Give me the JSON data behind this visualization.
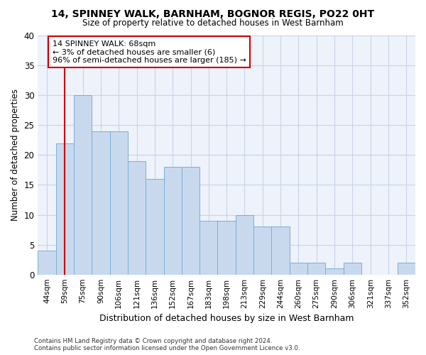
{
  "title": "14, SPINNEY WALK, BARNHAM, BOGNOR REGIS, PO22 0HT",
  "subtitle": "Size of property relative to detached houses in West Barnham",
  "xlabel": "Distribution of detached houses by size in West Barnham",
  "ylabel": "Number of detached properties",
  "categories": [
    "44sqm",
    "59sqm",
    "75sqm",
    "90sqm",
    "106sqm",
    "121sqm",
    "136sqm",
    "152sqm",
    "167sqm",
    "183sqm",
    "198sqm",
    "213sqm",
    "229sqm",
    "244sqm",
    "260sqm",
    "275sqm",
    "290sqm",
    "306sqm",
    "321sqm",
    "337sqm",
    "352sqm"
  ],
  "values": [
    4,
    22,
    30,
    24,
    24,
    19,
    16,
    18,
    18,
    9,
    9,
    10,
    8,
    8,
    2,
    2,
    1,
    2,
    0,
    0,
    2
  ],
  "bar_color": "#c8d9ee",
  "bar_edge_color": "#7aaed4",
  "grid_color": "#c8d4e8",
  "background_color": "#eef2fa",
  "property_line_x": 1,
  "annotation_line1": "14 SPINNEY WALK: 68sqm",
  "annotation_line2": "← 3% of detached houses are smaller (6)",
  "annotation_line3": "96% of semi-detached houses are larger (185) →",
  "annotation_box_color": "#ffffff",
  "annotation_box_edge_color": "#cc0000",
  "property_line_color": "#cc0000",
  "footer_text": "Contains HM Land Registry data © Crown copyright and database right 2024.\nContains public sector information licensed under the Open Government Licence v3.0.",
  "ylim": [
    0,
    40
  ],
  "yticks": [
    0,
    5,
    10,
    15,
    20,
    25,
    30,
    35,
    40
  ]
}
